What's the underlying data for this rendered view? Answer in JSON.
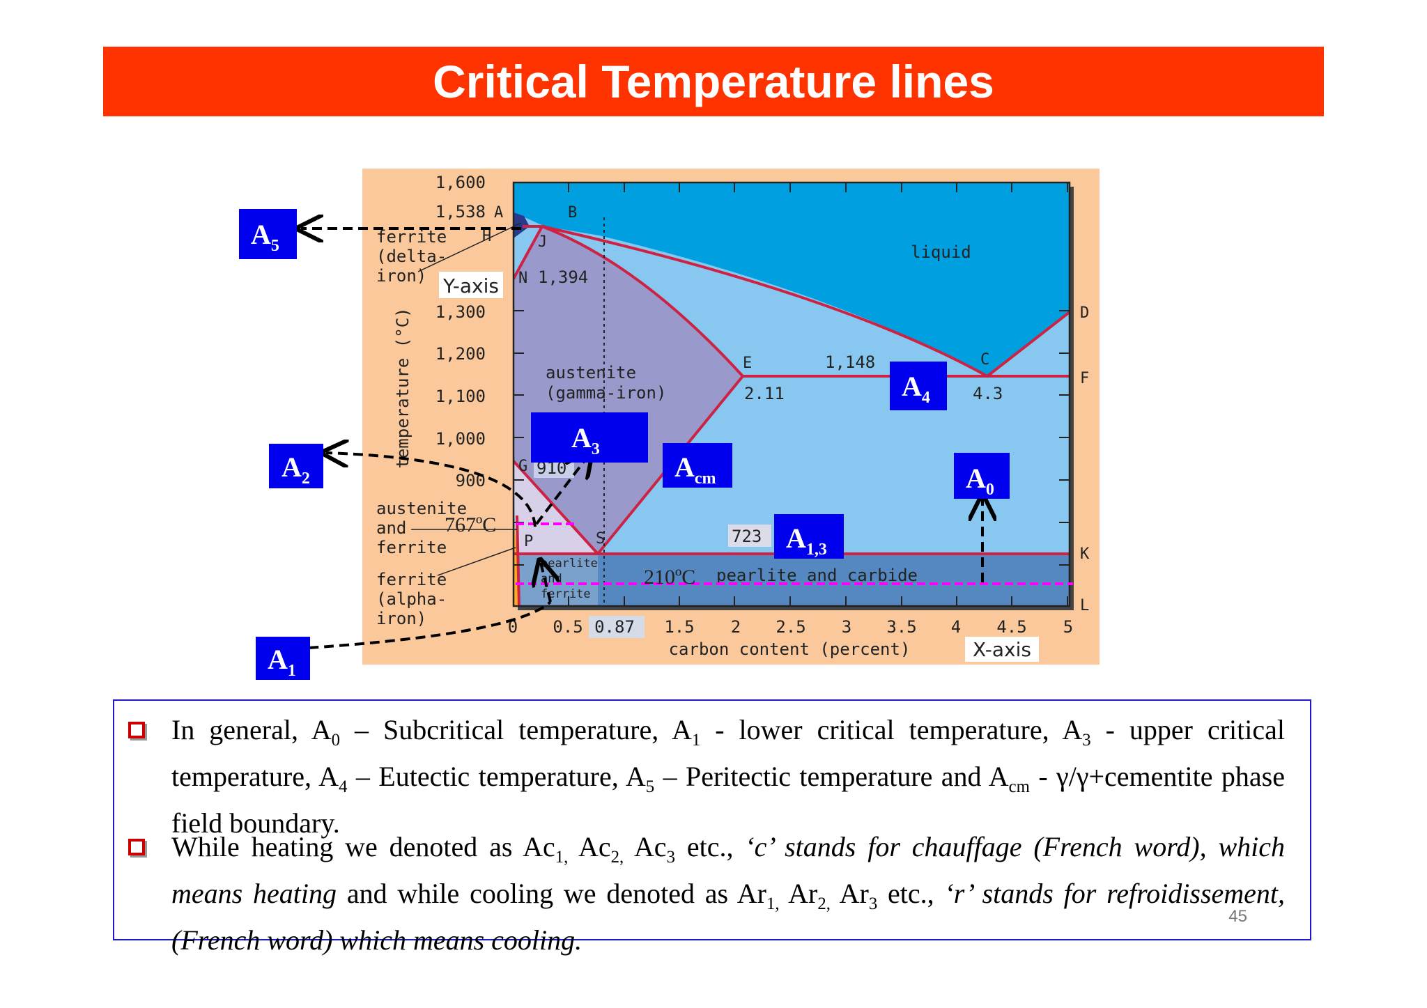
{
  "title": "Critical Temperature lines",
  "diagram": {
    "y_ticks": [
      "1,600",
      "1,538",
      "1,300",
      "1,200",
      "1,100",
      "1,000",
      "900"
    ],
    "x_ticks": [
      "0",
      "0.5",
      "0.87",
      "1.5",
      "2",
      "2.5",
      "3",
      "3.5",
      "4",
      "4.5",
      "5"
    ],
    "y_axis_label": "temperature (°C)",
    "x_axis_label": "carbon content (percent)",
    "y_axis_tag": "Y-axis",
    "x_axis_tag": "X-axis",
    "points": {
      "A": "A",
      "B": "B",
      "H": "H",
      "J": "J",
      "N": "N",
      "G": "G",
      "P": "P",
      "S": "S",
      "E": "E",
      "C": "C",
      "D": "D",
      "F": "F",
      "K": "K",
      "L": "L"
    },
    "values": {
      "n_temp": "1,394",
      "g_temp": "910",
      "e_temp": "1,148",
      "e_carbon": "2.11",
      "c_carbon": "4.3",
      "eutectoid_temp": "723",
      "curie_temp": "767ºC",
      "a0_temp": "210ºC"
    },
    "regions": {
      "ferrite_delta_1": "ferrite",
      "ferrite_delta_2": "(delta-",
      "ferrite_delta_3": "iron)",
      "liquid": "liquid",
      "austenite_1": "austenite",
      "austenite_2": "(gamma-iron)",
      "aus_ferrite_1": "austenite",
      "aus_ferrite_2": "and",
      "aus_ferrite_3": "ferrite",
      "ferrite_alpha_1": "ferrite",
      "ferrite_alpha_2": "(alpha-",
      "ferrite_alpha_3": "iron)",
      "pearlite_ferrite_1": "pearlite",
      "pearlite_ferrite_2": "and",
      "pearlite_ferrite_3": "ferrite",
      "pearlite_carbide": "pearlite and carbide"
    },
    "labels": {
      "a5": {
        "main": "A",
        "sub": "5"
      },
      "a2": {
        "main": "A",
        "sub": "2"
      },
      "a1": {
        "main": "A",
        "sub": "1"
      },
      "a3": {
        "main": "A",
        "sub": "3"
      },
      "acm": {
        "main": "A",
        "sub": "cm"
      },
      "a4": {
        "main": "A",
        "sub": "4"
      },
      "a0": {
        "main": "A",
        "sub": "0"
      },
      "a13": {
        "main": "A",
        "sub": "1,3"
      }
    },
    "colors": {
      "liquid": "#00a0e0",
      "austenite": "#9999cc",
      "light_blue": "#88c8f0",
      "pearlite_band": "#5588c0",
      "boundary": "#cc2244",
      "label_box": "#0000ee",
      "background": "#fac89a",
      "magenta": "#ff00ff"
    }
  },
  "notes": {
    "b1": {
      "t1": "In general, A",
      "s1": "0",
      "t2": " – Subcritical temperature, A",
      "s2": "1",
      "t3": " - lower critical temperature, A",
      "s3": "3",
      "t4": " - upper critical temperature, A",
      "s4": "4",
      "t5": " – Eutectic temperature, A",
      "s5": "5",
      "t6": " – Peritectic temperature and A",
      "s6": "cm",
      "t7": " - γ/γ+cementite phase field boundary."
    },
    "b2": {
      "t1": "While heating we denoted as Ac",
      "s1": "1,",
      "t2": " Ac",
      "s2": "2,",
      "t3": " Ac",
      "s3": "3",
      "t4": " etc., ",
      "i1": "‘c’ stands for chauffage (French word), which means heating",
      "t5": " and while cooling we denoted as Ar",
      "s5": "1,",
      "t6": " Ar",
      "s6": "2,",
      "t7": " Ar",
      "s7": "3",
      "t8": " etc., ",
      "i2": "‘r’ stands for refroidissement, (French word) which means cooling."
    }
  },
  "page_number": "45"
}
